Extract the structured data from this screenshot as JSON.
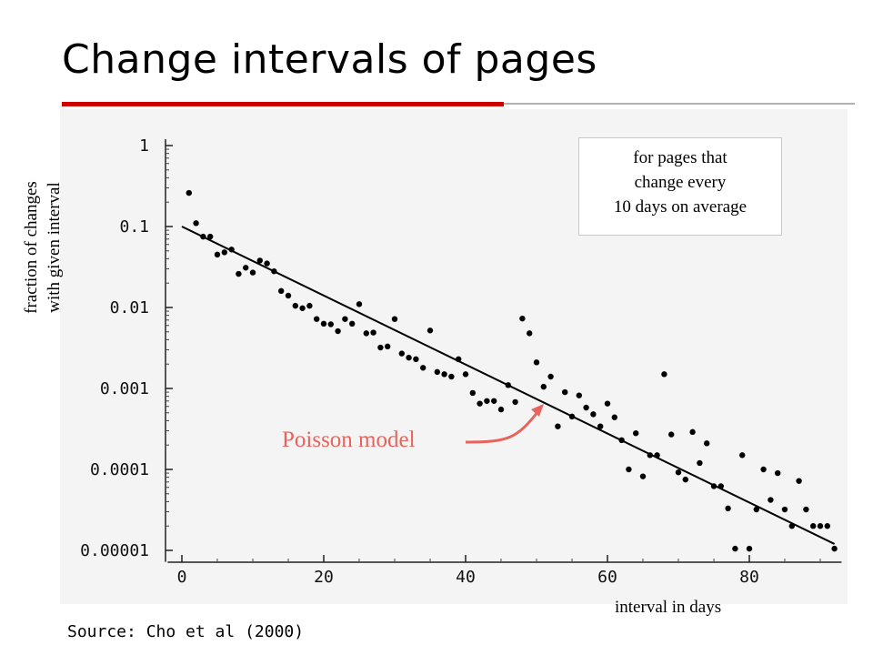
{
  "slide": {
    "title": "Change intervals of pages",
    "source": "Source: Cho et al (2000)",
    "colors": {
      "accent_rule": "#cc0000",
      "annotation": "#e8635b",
      "points": "#000000",
      "fit_line": "#000000"
    }
  },
  "chart_data": {
    "type": "scatter",
    "title": "",
    "xlabel": "interval in days",
    "ylabel_lines": [
      "fraction of changes",
      "with given interval"
    ],
    "yscale": "log",
    "xlim": [
      -2,
      93
    ],
    "ylim": [
      8e-06,
      1.2
    ],
    "xticks": [
      0,
      20,
      40,
      60,
      80
    ],
    "xtick_labels": [
      "0",
      "20",
      "40",
      "60",
      "80"
    ],
    "yticks": [
      1,
      0.1,
      0.01,
      0.001,
      0.0001,
      1e-05
    ],
    "ytick_labels": [
      "1",
      "0.1",
      "0.01",
      "0.001",
      "0.0001",
      "0.00001"
    ],
    "grid": false,
    "box_text": [
      "for pages that",
      "change every",
      "10 days on average"
    ],
    "annotation": {
      "label": "Poisson model",
      "points_to": [
        52,
        0.0006
      ]
    },
    "fit_line": {
      "label": "Poisson model",
      "x": [
        0,
        92
      ],
      "y": [
        0.1,
        1.2e-05
      ]
    },
    "series": [
      {
        "points": [
          [
            1,
            0.26
          ],
          [
            2,
            0.11
          ],
          [
            3,
            0.075
          ],
          [
            4,
            0.075
          ],
          [
            5,
            0.045
          ],
          [
            6,
            0.048
          ],
          [
            7,
            0.052
          ],
          [
            8,
            0.026
          ],
          [
            9,
            0.031
          ],
          [
            10,
            0.027
          ],
          [
            11,
            0.038
          ],
          [
            12,
            0.035
          ],
          [
            13,
            0.028
          ],
          [
            14,
            0.016
          ],
          [
            15,
            0.014
          ],
          [
            16,
            0.0105
          ],
          [
            17,
            0.0098
          ],
          [
            18,
            0.0105
          ],
          [
            19,
            0.0072
          ],
          [
            20,
            0.0063
          ],
          [
            21,
            0.0062
          ],
          [
            22,
            0.0051
          ],
          [
            23,
            0.0072
          ],
          [
            24,
            0.0063
          ],
          [
            25,
            0.011
          ],
          [
            26,
            0.0048
          ],
          [
            27,
            0.0049
          ],
          [
            28,
            0.0032
          ],
          [
            29,
            0.0033
          ],
          [
            30,
            0.0072
          ],
          [
            31,
            0.0027
          ],
          [
            32,
            0.0024
          ],
          [
            33,
            0.0023
          ],
          [
            34,
            0.0018
          ],
          [
            35,
            0.0052
          ],
          [
            36,
            0.0016
          ],
          [
            37,
            0.0015
          ],
          [
            38,
            0.0014
          ],
          [
            39,
            0.0023
          ],
          [
            40,
            0.0015
          ],
          [
            41,
            0.00088
          ],
          [
            42,
            0.00065
          ],
          [
            43,
            0.0007
          ],
          [
            44,
            0.0007
          ],
          [
            45,
            0.00055
          ],
          [
            46,
            0.0011
          ],
          [
            47,
            0.00068
          ],
          [
            48,
            0.0073
          ],
          [
            49,
            0.0048
          ],
          [
            50,
            0.0021
          ],
          [
            51,
            0.00105
          ],
          [
            52,
            0.0014
          ],
          [
            53,
            0.00034
          ],
          [
            54,
            0.0009
          ],
          [
            55,
            0.00045
          ],
          [
            56,
            0.00082
          ],
          [
            57,
            0.00058
          ],
          [
            58,
            0.00048
          ],
          [
            59,
            0.00034
          ],
          [
            60,
            0.00065
          ],
          [
            61,
            0.00044
          ],
          [
            62,
            0.00023
          ],
          [
            63,
            0.0001
          ],
          [
            64,
            0.00028
          ],
          [
            65,
            8.2e-05
          ],
          [
            66,
            0.00015
          ],
          [
            67,
            0.00015
          ],
          [
            68,
            0.0015
          ],
          [
            69,
            0.00027
          ],
          [
            70,
            9.2e-05
          ],
          [
            71,
            7.5e-05
          ],
          [
            72,
            0.00029
          ],
          [
            73,
            0.00012
          ],
          [
            74,
            0.00021
          ],
          [
            75,
            6.2e-05
          ],
          [
            76,
            6.2e-05
          ],
          [
            77,
            3.3e-05
          ],
          [
            78,
            1.05e-05
          ],
          [
            79,
            0.00015
          ],
          [
            80,
            1.05e-05
          ],
          [
            81,
            3.2e-05
          ],
          [
            82,
            0.0001
          ],
          [
            83,
            4.2e-05
          ],
          [
            84,
            9e-05
          ],
          [
            85,
            3.2e-05
          ],
          [
            86,
            2e-05
          ],
          [
            87,
            7.2e-05
          ],
          [
            88,
            3.2e-05
          ],
          [
            89,
            2e-05
          ],
          [
            90,
            2e-05
          ],
          [
            91,
            2e-05
          ],
          [
            92,
            1.05e-05
          ]
        ]
      }
    ]
  }
}
